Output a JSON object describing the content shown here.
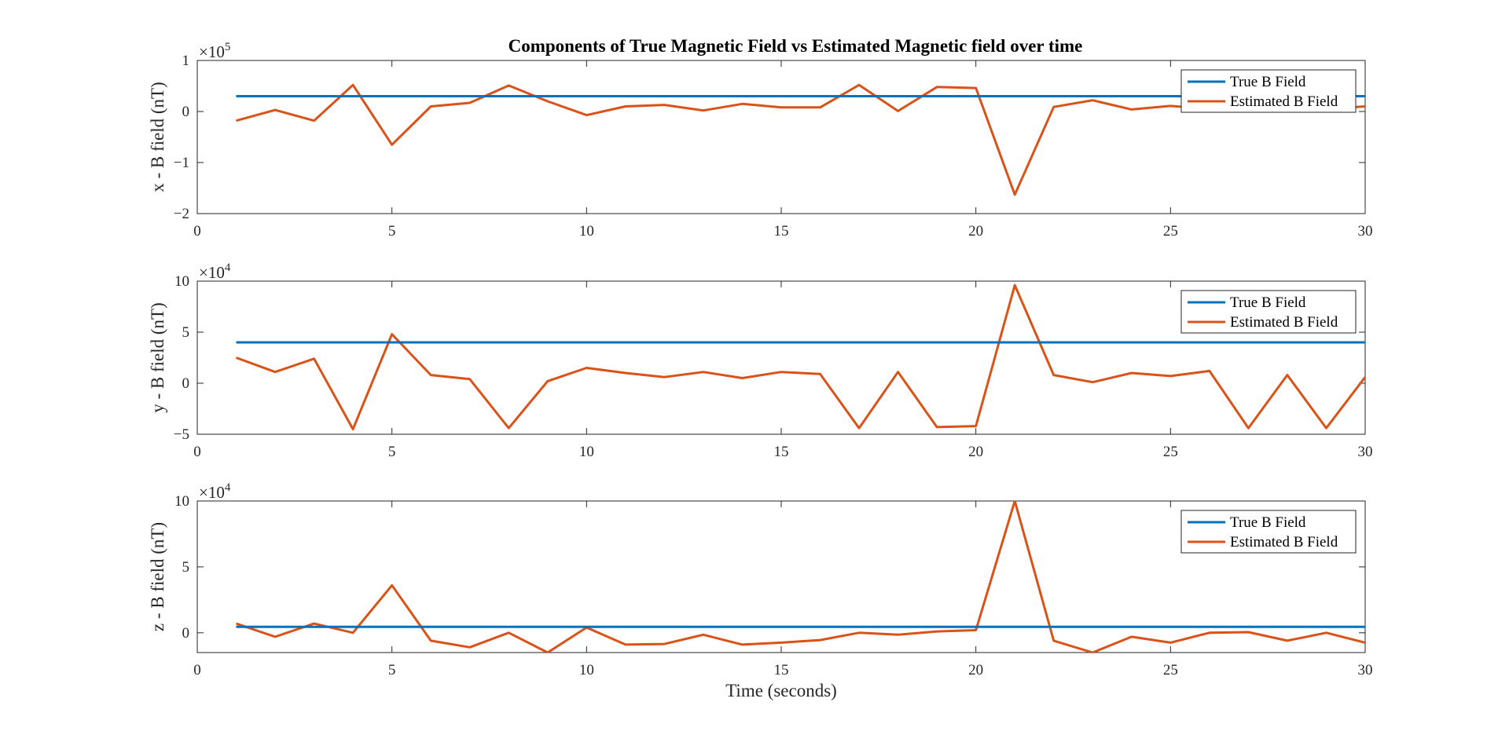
{
  "figure_title": "Components of True Magnetic Field vs Estimated Magnetic field over time",
  "colors": {
    "true_field": "#0072BD",
    "estimated_field": "#D95319",
    "axes": "#262626"
  },
  "chart_data": [
    {
      "type": "line",
      "title": "Components of True Magnetic Field vs Estimated Magnetic field over time",
      "xlabel": "",
      "ylabel": "x - B field (nT)",
      "xlim": [
        0,
        30
      ],
      "ylim": [
        -2,
        1
      ],
      "xticks": [
        0,
        5,
        10,
        15,
        20,
        25,
        30
      ],
      "yticks": [
        -2,
        -1,
        0,
        1
      ],
      "exponent_base": "×10",
      "exponent": "5",
      "legend": {
        "position": "top-right",
        "entries": [
          "True B Field",
          "Estimated B Field"
        ]
      },
      "grid": false,
      "series": [
        {
          "name": "True B Field",
          "x": [
            1,
            30
          ],
          "y": [
            0.3,
            0.3
          ]
        },
        {
          "name": "Estimated B Field",
          "x": [
            1,
            2,
            3,
            4,
            5,
            6,
            7,
            8,
            9,
            10,
            11,
            12,
            13,
            14,
            15,
            16,
            17,
            18,
            19,
            20,
            21,
            22,
            23,
            24,
            25,
            26,
            27,
            28,
            29,
            30
          ],
          "y": [
            -0.18,
            0.03,
            -0.18,
            0.52,
            -0.65,
            0.1,
            0.17,
            0.51,
            0.2,
            -0.07,
            0.1,
            0.13,
            0.02,
            0.15,
            0.08,
            0.08,
            0.52,
            0.01,
            0.48,
            0.46,
            -1.63,
            0.09,
            0.22,
            0.04,
            0.11,
            0.05,
            0.05,
            0.05,
            0.05,
            0.1
          ]
        }
      ]
    },
    {
      "type": "line",
      "xlabel": "",
      "ylabel": "y - B field (nT)",
      "xlim": [
        0,
        30
      ],
      "ylim": [
        -5,
        10
      ],
      "xticks": [
        0,
        5,
        10,
        15,
        20,
        25,
        30
      ],
      "yticks": [
        -5,
        0,
        5,
        10
      ],
      "exponent_base": "×10",
      "exponent": "4",
      "legend": {
        "position": "top-right",
        "entries": [
          "True B Field",
          "Estimated B Field"
        ]
      },
      "grid": false,
      "series": [
        {
          "name": "True B Field",
          "x": [
            1,
            30
          ],
          "y": [
            4,
            4
          ]
        },
        {
          "name": "Estimated B Field",
          "x": [
            1,
            2,
            3,
            4,
            5,
            6,
            7,
            8,
            9,
            10,
            11,
            12,
            13,
            14,
            15,
            16,
            17,
            18,
            19,
            20,
            21,
            22,
            23,
            24,
            25,
            26,
            27,
            28,
            29,
            30
          ],
          "y": [
            2.5,
            1.1,
            2.4,
            -4.5,
            4.8,
            0.8,
            0.4,
            -4.4,
            0.2,
            1.5,
            1.0,
            0.6,
            1.1,
            0.5,
            1.1,
            0.9,
            -4.4,
            1.1,
            -4.3,
            -4.2,
            9.6,
            0.8,
            0.1,
            1.0,
            0.7,
            1.2,
            -4.4,
            0.8,
            -4.4,
            0.6
          ]
        }
      ]
    },
    {
      "type": "line",
      "xlabel": "Time (seconds)",
      "ylabel": "z - B field (nT)",
      "xlim": [
        0,
        30
      ],
      "ylim": [
        -1.5,
        10
      ],
      "xticks": [
        0,
        5,
        10,
        15,
        20,
        25,
        30
      ],
      "yticks": [
        0,
        5,
        10
      ],
      "exponent_base": "×10",
      "exponent": "4",
      "legend": {
        "position": "top-right",
        "entries": [
          "True B Field",
          "Estimated B Field"
        ]
      },
      "grid": false,
      "series": [
        {
          "name": "True B Field",
          "x": [
            1,
            30
          ],
          "y": [
            0.45,
            0.45
          ]
        },
        {
          "name": "Estimated B Field",
          "x": [
            1,
            2,
            3,
            4,
            5,
            6,
            7,
            8,
            9,
            10,
            11,
            12,
            13,
            14,
            15,
            16,
            17,
            18,
            19,
            20,
            21,
            22,
            23,
            24,
            25,
            26,
            27,
            28,
            29,
            30
          ],
          "y": [
            0.7,
            -0.3,
            0.7,
            0.0,
            3.6,
            -0.6,
            -1.1,
            0.0,
            -1.5,
            0.4,
            -0.9,
            -0.85,
            -0.15,
            -0.9,
            -0.75,
            -0.55,
            0.0,
            -0.15,
            0.1,
            0.2,
            10.0,
            -0.6,
            -1.5,
            -0.3,
            -0.75,
            0.0,
            0.05,
            -0.6,
            0.0,
            -0.75
          ]
        }
      ]
    }
  ]
}
